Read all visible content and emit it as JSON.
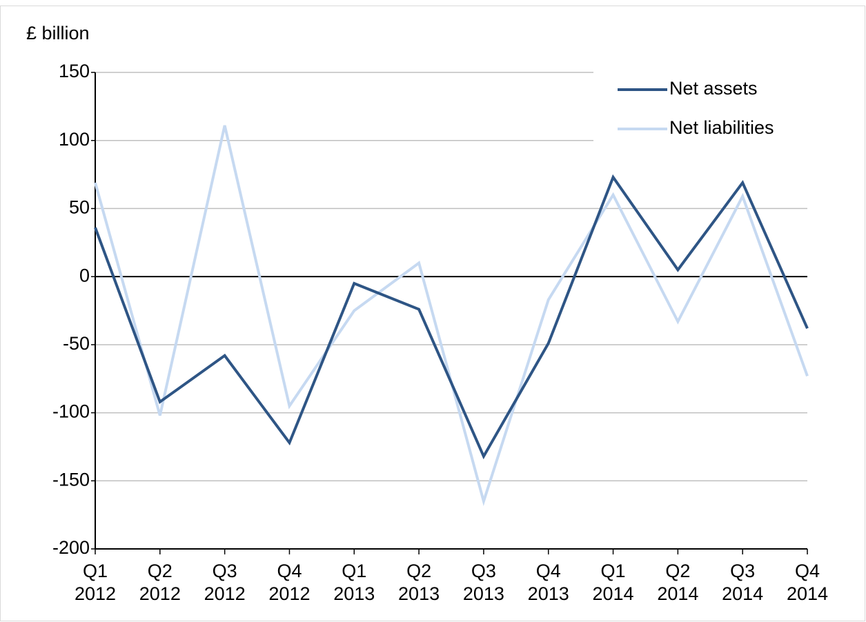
{
  "chart_data": {
    "type": "line",
    "y_label": "£ billion",
    "categories": [
      "Q1 2012",
      "Q2 2012",
      "Q3 2012",
      "Q4 2012",
      "Q1 2013",
      "Q2 2013",
      "Q3 2013",
      "Q4 2013",
      "Q1 2014",
      "Q2 2014",
      "Q3 2014",
      "Q4 2014"
    ],
    "series": [
      {
        "name": "Net assets",
        "color": "#2e5585",
        "values": [
          36,
          -92,
          -58,
          -122,
          -5,
          -24,
          -132,
          -49,
          73,
          5,
          69,
          -38
        ]
      },
      {
        "name": "Net liabilities",
        "color": "#c6d9f1",
        "values": [
          69,
          -102,
          111,
          -95,
          -25,
          10,
          -165,
          -17,
          60,
          -33,
          59,
          -73
        ]
      }
    ],
    "ylim": [
      -200,
      150
    ],
    "yticks": [
      -200,
      -150,
      -100,
      -50,
      0,
      50,
      100,
      150
    ],
    "grid": true,
    "legend": "top-right"
  }
}
